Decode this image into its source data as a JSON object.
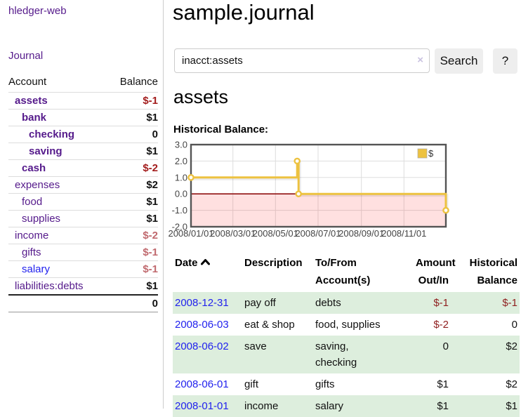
{
  "colors": {
    "purple_link": "#551a8b",
    "blue_link": "#2222ee",
    "negative_strong": "#a31d1d",
    "negative_soft": "#c0696e",
    "negative_table": "#8f1f1f",
    "row_green": "#ddeedd",
    "chart_series_yellow": "#edc240",
    "chart_zero_line": "#8f1010",
    "chart_frame": "#545454",
    "button_bg": "#eeeeee"
  },
  "sidebar": {
    "app_title": "hledger-web",
    "nav": {
      "journal": "Journal"
    },
    "accounts": {
      "header_account": "Account",
      "header_balance": "Balance",
      "rows": [
        {
          "name": "assets",
          "indent": 1,
          "bold": true,
          "balance": "$-1",
          "neg": "strong"
        },
        {
          "name": "bank",
          "indent": 2,
          "bold": true,
          "balance": "$1"
        },
        {
          "name": "checking",
          "indent": 3,
          "bold": true,
          "balance": "0"
        },
        {
          "name": "saving",
          "indent": 3,
          "bold": true,
          "balance": "$1"
        },
        {
          "name": "cash",
          "indent": 2,
          "bold": true,
          "balance": "$-2",
          "neg": "strong"
        },
        {
          "name": "expenses",
          "indent": 1,
          "bold": false,
          "balance": "$2"
        },
        {
          "name": "food",
          "indent": 2,
          "bold": false,
          "balance": "$1"
        },
        {
          "name": "supplies",
          "indent": 2,
          "bold": false,
          "balance": "$1"
        },
        {
          "name": "income",
          "indent": 1,
          "bold": false,
          "balance": "$-2",
          "neg": "soft"
        },
        {
          "name": "gifts",
          "indent": 2,
          "bold": false,
          "balance": "$-1",
          "neg": "soft"
        },
        {
          "name": "salary",
          "indent": 2,
          "bold": false,
          "balance": "$-1",
          "neg": "soft",
          "blue": true
        },
        {
          "name": "liabilities:debts",
          "indent": 1,
          "bold": false,
          "balance": "$1"
        }
      ],
      "total": "0"
    }
  },
  "main": {
    "page_title": "sample.journal",
    "search": {
      "value": "inacct:assets",
      "clear_label": "×",
      "button_label": "Search",
      "help_label": "?"
    },
    "account_heading": "assets",
    "chart_label": "Historical Balance:"
  },
  "chart_data": {
    "type": "line",
    "step": true,
    "title": "Historical Balance",
    "legend": {
      "position": "top-right",
      "entries": [
        "$"
      ]
    },
    "series": [
      {
        "name": "$",
        "points": [
          [
            "2008-01-01",
            1
          ],
          [
            "2008-06-01",
            2
          ],
          [
            "2008-06-03",
            0
          ],
          [
            "2008-12-31",
            -1
          ]
        ]
      }
    ],
    "xlim": [
      "2008-01-01",
      "2008-12-31"
    ],
    "ylim": [
      -2,
      3
    ],
    "y_ticks": [
      "3.0",
      "2.0",
      "1.0",
      "0.0",
      "-1.0",
      "-2.0"
    ],
    "x_ticks": [
      "2008/01/01",
      "2008/03/01",
      "2008/05/01",
      "2008/07/01",
      "2008/09/01",
      "2008/11/01"
    ],
    "grid": true,
    "negative_region_shaded": true
  },
  "transactions": {
    "headers": {
      "date": "Date",
      "description": "Description",
      "accounts_line1": "To/From",
      "accounts_line2": "Account(s)",
      "amount_line1": "Amount",
      "amount_line2": "Out/In",
      "balance_line1": "Historical",
      "balance_line2": "Balance"
    },
    "sort": {
      "column": "date",
      "direction": "asc"
    },
    "rows": [
      {
        "date": "2008-12-31",
        "description": "pay off",
        "accounts": "debts",
        "amount": "$-1",
        "amount_neg": true,
        "balance": "$-1",
        "balance_neg": true,
        "green": true
      },
      {
        "date": "2008-06-03",
        "description": "eat & shop",
        "accounts": "food, supplies",
        "amount": "$-2",
        "amount_neg": true,
        "balance": "0",
        "balance_neg": false,
        "green": false
      },
      {
        "date": "2008-06-02",
        "description": "save",
        "accounts": "saving,\nchecking",
        "amount": "0",
        "amount_neg": false,
        "balance": "$2",
        "balance_neg": false,
        "green": true
      },
      {
        "date": "2008-06-01",
        "description": "gift",
        "accounts": "gifts",
        "amount": "$1",
        "amount_neg": false,
        "balance": "$2",
        "balance_neg": false,
        "green": false
      },
      {
        "date": "2008-01-01",
        "description": "income",
        "accounts": "salary",
        "amount": "$1",
        "amount_neg": false,
        "balance": "$1",
        "balance_neg": false,
        "green": true
      }
    ]
  }
}
